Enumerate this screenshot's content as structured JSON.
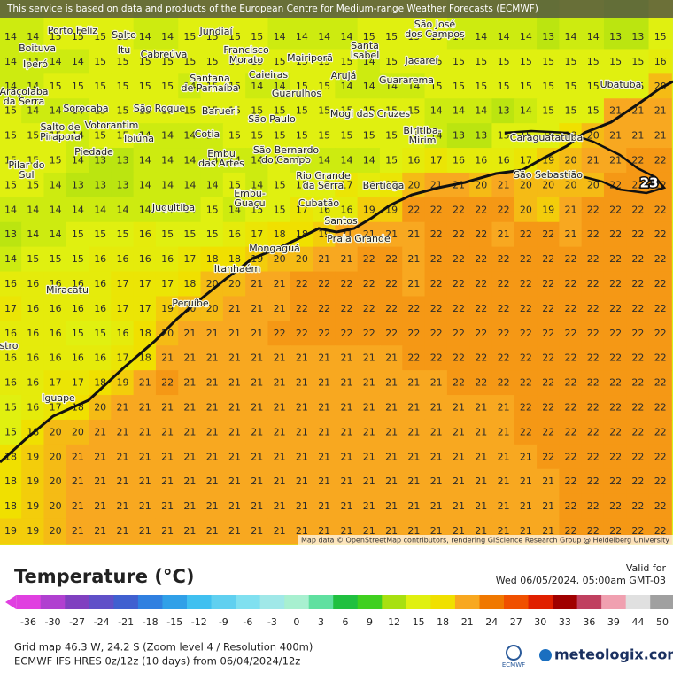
{
  "header": {
    "notice": "This service is based on data and products of the European Centre for Medium-range Weather Forecasts (ECMWF)"
  },
  "grid": {
    "rows": [
      [
        14,
        14,
        15,
        15,
        15,
        15,
        14,
        14,
        15,
        15,
        15,
        15,
        14,
        14,
        14,
        14,
        15,
        15,
        15,
        15,
        14,
        14,
        14,
        14,
        13,
        14,
        14,
        13,
        13,
        15
      ],
      [
        14,
        14,
        14,
        14,
        15,
        15,
        15,
        15,
        15,
        15,
        15,
        15,
        15,
        15,
        15,
        15,
        14,
        15,
        15,
        15,
        15,
        15,
        15,
        15,
        15,
        15,
        15,
        15,
        15,
        16
      ],
      [
        14,
        14,
        15,
        15,
        15,
        15,
        15,
        15,
        14,
        15,
        15,
        14,
        14,
        15,
        15,
        14,
        14,
        14,
        14,
        15,
        15,
        15,
        15,
        15,
        15,
        15,
        15,
        15,
        15,
        20
      ],
      [
        15,
        14,
        14,
        14,
        15,
        15,
        15,
        15,
        15,
        15,
        15,
        15,
        15,
        15,
        15,
        15,
        15,
        15,
        15,
        14,
        14,
        14,
        13,
        14,
        15,
        15,
        15,
        21,
        21,
        21
      ],
      [
        15,
        15,
        15,
        14,
        15,
        15,
        14,
        14,
        14,
        14,
        15,
        15,
        15,
        15,
        15,
        15,
        15,
        15,
        15,
        14,
        13,
        13,
        15,
        15,
        15,
        18,
        20,
        21,
        21,
        21
      ],
      [
        15,
        15,
        15,
        14,
        13,
        13,
        14,
        14,
        14,
        14,
        14,
        14,
        15,
        14,
        14,
        14,
        14,
        15,
        16,
        17,
        16,
        16,
        16,
        17,
        19,
        20,
        21,
        21,
        22,
        22
      ],
      [
        15,
        15,
        14,
        13,
        13,
        13,
        14,
        14,
        14,
        14,
        15,
        14,
        15,
        15,
        15,
        17,
        16,
        17,
        20,
        21,
        21,
        20,
        21,
        20,
        20,
        20,
        20,
        22,
        22,
        22
      ],
      [
        14,
        14,
        14,
        14,
        14,
        14,
        14,
        14,
        14,
        15,
        14,
        15,
        15,
        17,
        16,
        16,
        19,
        19,
        22,
        22,
        22,
        22,
        22,
        20,
        19,
        21,
        22,
        22,
        22,
        22
      ],
      [
        13,
        14,
        14,
        15,
        15,
        15,
        16,
        15,
        15,
        15,
        16,
        17,
        18,
        18,
        19,
        21,
        21,
        21,
        21,
        22,
        22,
        22,
        21,
        22,
        22,
        21,
        22,
        22,
        22,
        22
      ],
      [
        14,
        15,
        15,
        15,
        16,
        16,
        16,
        16,
        17,
        18,
        18,
        19,
        20,
        20,
        21,
        21,
        22,
        22,
        21,
        22,
        22,
        22,
        22,
        22,
        22,
        22,
        22,
        22,
        22,
        22
      ],
      [
        16,
        16,
        16,
        16,
        16,
        17,
        17,
        17,
        18,
        20,
        20,
        21,
        21,
        22,
        22,
        22,
        22,
        22,
        21,
        22,
        22,
        22,
        22,
        22,
        22,
        22,
        22,
        22,
        22,
        22
      ],
      [
        17,
        16,
        16,
        16,
        16,
        17,
        17,
        19,
        20,
        20,
        21,
        21,
        21,
        22,
        22,
        22,
        22,
        22,
        22,
        22,
        22,
        22,
        22,
        22,
        22,
        22,
        22,
        22,
        22,
        22
      ],
      [
        16,
        16,
        16,
        15,
        15,
        16,
        18,
        20,
        21,
        21,
        21,
        21,
        22,
        22,
        22,
        22,
        22,
        22,
        22,
        22,
        22,
        22,
        22,
        22,
        22,
        22,
        22,
        22,
        22,
        22
      ],
      [
        16,
        16,
        16,
        16,
        16,
        17,
        18,
        21,
        21,
        21,
        21,
        21,
        21,
        21,
        21,
        21,
        21,
        21,
        22,
        22,
        22,
        22,
        22,
        22,
        22,
        22,
        22,
        22,
        22,
        22
      ],
      [
        16,
        16,
        17,
        17,
        18,
        19,
        21,
        22,
        21,
        21,
        21,
        21,
        21,
        21,
        21,
        21,
        21,
        21,
        21,
        21,
        22,
        22,
        22,
        22,
        22,
        22,
        22,
        22,
        22,
        22
      ],
      [
        15,
        16,
        17,
        18,
        20,
        21,
        21,
        21,
        21,
        21,
        21,
        21,
        21,
        21,
        21,
        21,
        21,
        21,
        21,
        21,
        21,
        21,
        21,
        22,
        22,
        22,
        22,
        22,
        22,
        22
      ],
      [
        15,
        18,
        20,
        20,
        21,
        21,
        21,
        21,
        21,
        21,
        21,
        21,
        21,
        21,
        21,
        21,
        21,
        21,
        21,
        21,
        21,
        21,
        21,
        22,
        22,
        22,
        22,
        22,
        22,
        22
      ],
      [
        18,
        19,
        20,
        21,
        21,
        21,
        21,
        21,
        21,
        21,
        21,
        21,
        21,
        21,
        21,
        21,
        21,
        21,
        21,
        21,
        21,
        21,
        21,
        21,
        22,
        22,
        22,
        22,
        22,
        22
      ],
      [
        18,
        19,
        20,
        21,
        21,
        21,
        21,
        21,
        21,
        21,
        21,
        21,
        21,
        21,
        21,
        21,
        21,
        21,
        21,
        21,
        21,
        21,
        21,
        21,
        21,
        22,
        22,
        22,
        22,
        22
      ],
      [
        18,
        19,
        20,
        21,
        21,
        21,
        21,
        21,
        21,
        21,
        21,
        21,
        21,
        21,
        21,
        21,
        21,
        21,
        21,
        21,
        21,
        21,
        21,
        21,
        21,
        22,
        22,
        22,
        22,
        22
      ],
      [
        19,
        19,
        20,
        21,
        21,
        21,
        21,
        21,
        21,
        21,
        21,
        21,
        21,
        21,
        21,
        21,
        21,
        21,
        21,
        21,
        21,
        21,
        21,
        21,
        21,
        22,
        22,
        22,
        22,
        22
      ]
    ]
  },
  "max_label": 23,
  "places": [
    {
      "lines": [
        "Porto Feliz"
      ]
    },
    {
      "lines": [
        "Salto"
      ]
    },
    {
      "lines": [
        "Itu"
      ]
    },
    {
      "lines": [
        "Boituva"
      ]
    },
    {
      "lines": [
        "Iperó"
      ]
    },
    {
      "lines": [
        "Cabreúva"
      ]
    },
    {
      "lines": [
        "Jundiaí"
      ]
    },
    {
      "lines": [
        "Francisco",
        "Morato"
      ]
    },
    {
      "lines": [
        "Santana",
        "de Parnaíba"
      ]
    },
    {
      "lines": [
        "Caieiras"
      ]
    },
    {
      "lines": [
        "Mairiporã"
      ]
    },
    {
      "lines": [
        "Arujá"
      ]
    },
    {
      "lines": [
        "Santa",
        "Isabel"
      ]
    },
    {
      "lines": [
        "Jacareí"
      ]
    },
    {
      "lines": [
        "Guararema"
      ]
    },
    {
      "lines": [
        "São José",
        "dos Campos"
      ]
    },
    {
      "lines": [
        "Guarulhos"
      ]
    },
    {
      "lines": [
        "Araçoiaba",
        "da Serra"
      ]
    },
    {
      "lines": [
        "Sorocaba"
      ]
    },
    {
      "lines": [
        "São Roque"
      ]
    },
    {
      "lines": [
        "Barueri"
      ]
    },
    {
      "lines": [
        "São Paulo"
      ]
    },
    {
      "lines": [
        "Mogi das Cruzes"
      ]
    },
    {
      "lines": [
        "Salto de",
        "Pirapora"
      ]
    },
    {
      "lines": [
        "Votorantim"
      ]
    },
    {
      "lines": [
        "Ibiúna"
      ]
    },
    {
      "lines": [
        "Cotia"
      ]
    },
    {
      "lines": [
        "Embu",
        "das Artes"
      ]
    },
    {
      "lines": [
        "São Bernardo",
        "do Campo"
      ]
    },
    {
      "lines": [
        "Biritiba-",
        "Mirim"
      ]
    },
    {
      "lines": [
        "Caraguatatuba"
      ]
    },
    {
      "lines": [
        "Piedade"
      ]
    },
    {
      "lines": [
        "Pilar do",
        "Sul"
      ]
    },
    {
      "lines": [
        "Rio Grande",
        "da Serra"
      ]
    },
    {
      "lines": [
        "Bertioga"
      ]
    },
    {
      "lines": [
        "São Sebastião"
      ]
    },
    {
      "lines": [
        "Embu-",
        "Guaçu"
      ]
    },
    {
      "lines": [
        "Juquitiba"
      ]
    },
    {
      "lines": [
        "Cubatão"
      ]
    },
    {
      "lines": [
        "Santos"
      ]
    },
    {
      "lines": [
        "Praia Grande"
      ]
    },
    {
      "lines": [
        "Mongaguá"
      ]
    },
    {
      "lines": [
        "Itanhaém"
      ]
    },
    {
      "lines": [
        "Miracatu"
      ]
    },
    {
      "lines": [
        "Peruíbe"
      ]
    },
    {
      "lines": [
        "Iguape"
      ]
    },
    {
      "lines": [
        "Ubatuba"
      ]
    },
    {
      "lines": [
        "stro"
      ]
    }
  ],
  "attribution": "Map data © OpenStreetMap contributors, rendering GIScience Research Group @ Heidelberg University",
  "legend": {
    "title": "Temperature (°C)",
    "ticks": [
      -36,
      -30,
      -27,
      -24,
      -21,
      -18,
      -15,
      -12,
      -9,
      -6,
      -3,
      0,
      3,
      6,
      9,
      12,
      15,
      18,
      21,
      24,
      27,
      30,
      33,
      36,
      39,
      44,
      50
    ],
    "colors": [
      "#e040e0",
      "#b040d0",
      "#8040c0",
      "#6050c8",
      "#4060d0",
      "#3080e0",
      "#30a0e8",
      "#40c0f0",
      "#60d0f0",
      "#80e0f0",
      "#a0e8e8",
      "#a8f0d0",
      "#60e0a0",
      "#20c040",
      "#40d020",
      "#a8e010",
      "#e0f010",
      "#f0e000",
      "#f8a820",
      "#f07800",
      "#f05000",
      "#e02000",
      "#a00000",
      "#c04060",
      "#f0a0b0",
      "#e0e0e0",
      "#a0a0a0"
    ]
  },
  "valid_label": "Valid for",
  "valid_time": "Wed 06/05/2024, 05:00am GMT-03",
  "grid_info": "Grid map 46.3 W, 24.2 S (Zoom level 4 / Resolution 400m)",
  "model_info": "ECMWF IFS HRES 0z/12z (10 days) from 06/04/2024/12z",
  "brand": {
    "ecmwf": "ECMWF",
    "site": "meteologix.com"
  }
}
